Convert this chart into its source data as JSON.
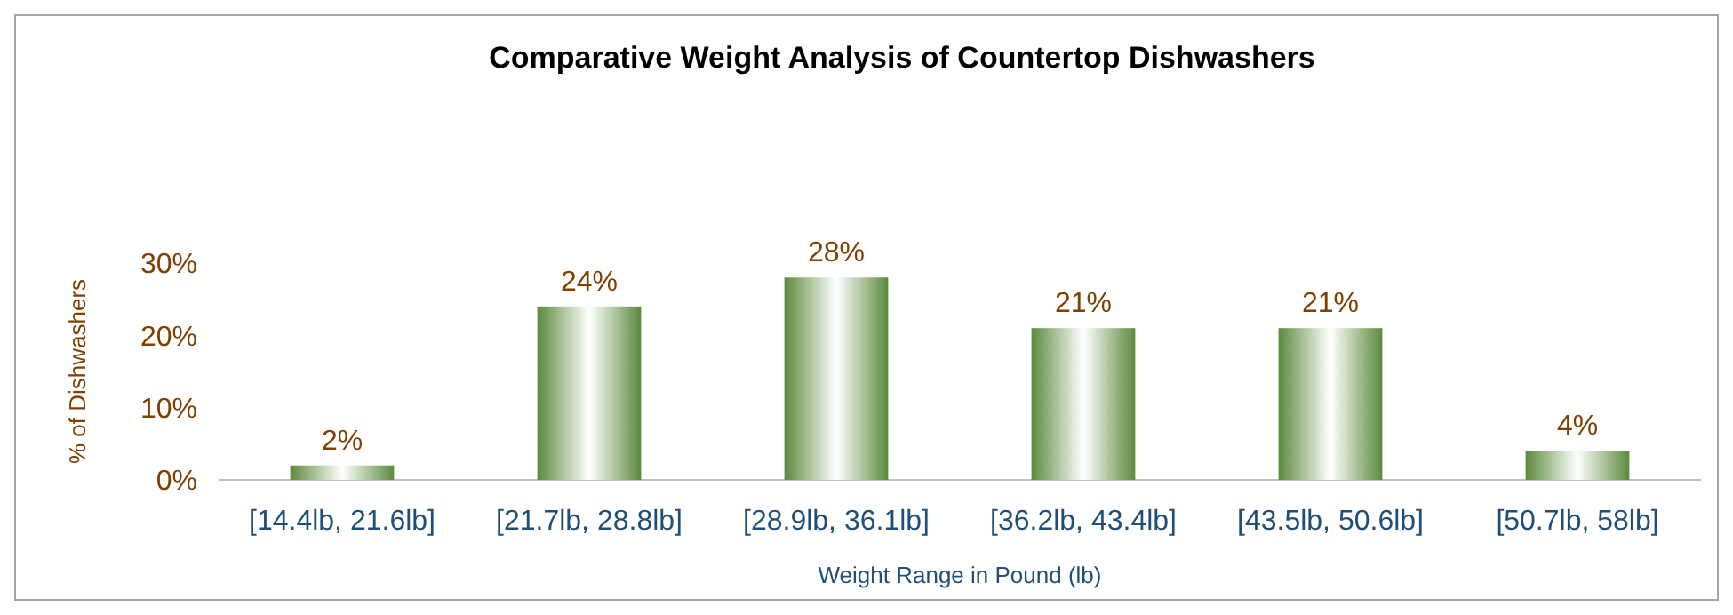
{
  "chart_data": {
    "type": "bar",
    "title": "Comparative Weight Analysis of Countertop Dishwashers",
    "xlabel": "Weight Range in Pound (lb)",
    "ylabel": "% of Dishwashers",
    "categories": [
      "[14.4lb, 21.6lb]",
      "[21.7lb, 28.8lb]",
      "[28.9lb, 36.1lb]",
      "[36.2lb, 43.4lb]",
      "[43.5lb, 50.6lb]",
      "[50.7lb, 58lb]"
    ],
    "values": [
      2,
      24,
      28,
      21,
      21,
      4
    ],
    "color": "#5b8a3c",
    "ylim": [
      0,
      30
    ],
    "yticks": [
      {
        "value": 0,
        "label": "0%"
      },
      {
        "value": 10,
        "label": "10%"
      },
      {
        "value": 20,
        "label": "20%"
      },
      {
        "value": 30,
        "label": "30%"
      }
    ],
    "data_labels": true,
    "value_labels": [
      "2%",
      "24%",
      "28%",
      "21%",
      "21%",
      "4%"
    ]
  }
}
